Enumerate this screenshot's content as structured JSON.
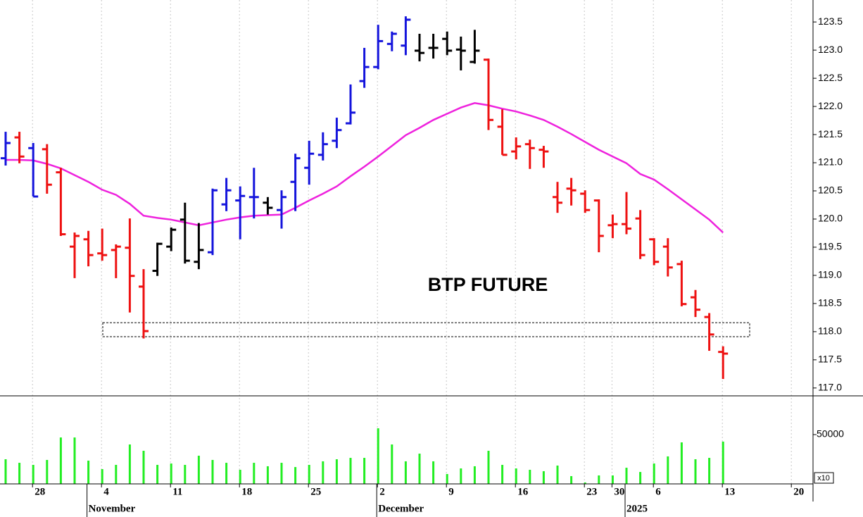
{
  "chart_data": {
    "type": "ohlc",
    "title": "BTP FUTURE",
    "categories": [
      null,
      null,
      "28",
      null,
      null,
      null,
      null,
      "4",
      null,
      null,
      null,
      null,
      "11",
      null,
      null,
      null,
      null,
      "18",
      null,
      null,
      null,
      null,
      "25",
      null,
      null,
      null,
      null,
      "2",
      null,
      null,
      null,
      null,
      "9",
      null,
      null,
      null,
      null,
      "16",
      null,
      null,
      null,
      null,
      "23",
      null,
      "30",
      null,
      null,
      "6",
      null,
      null,
      null,
      null,
      "13",
      null,
      null,
      null,
      null,
      "20"
    ],
    "month_labels": [
      null,
      null,
      null,
      null,
      null,
      null,
      "November",
      null,
      null,
      null,
      null,
      null,
      null,
      null,
      null,
      null,
      null,
      null,
      null,
      null,
      null,
      null,
      null,
      null,
      null,
      null,
      null,
      "December",
      null,
      null,
      null,
      null,
      null,
      null,
      null,
      null,
      null,
      null,
      null,
      null,
      null,
      null,
      null,
      null,
      null,
      "2025",
      null,
      null,
      null,
      null,
      null,
      null,
      null,
      null,
      null,
      null,
      null,
      null
    ],
    "open": [
      121.08,
      121.45,
      121.26,
      121.24,
      120.83,
      119.51,
      119.64,
      119.39,
      119.45,
      119.49,
      118.8,
      119.08,
      119.51,
      119.99,
      119.24,
      119.41,
      120.26,
      120.33,
      120.39,
      120.29,
      120.16,
      120.66,
      120.91,
      121.14,
      121.39,
      121.7,
      122.45,
      122.7,
      123.11,
      123.08,
      122.99,
      123.04,
      123.2,
      123.01,
      122.79,
      122.83,
      121.64,
      121.2,
      121.33,
      121.23,
      120.39,
      120.54,
      120.45,
      120.33,
      119.89,
      119.91,
      120.01,
      119.64,
      119.51,
      119.2,
      118.61,
      118.26,
      117.64,
      null,
      null,
      null,
      null,
      null
    ],
    "high": [
      121.55,
      121.55,
      121.35,
      121.33,
      120.91,
      119.76,
      119.79,
      119.83,
      119.55,
      120.01,
      119.11,
      119.58,
      119.85,
      120.29,
      119.93,
      120.54,
      120.73,
      120.58,
      120.91,
      120.39,
      120.51,
      121.16,
      121.39,
      121.54,
      121.8,
      122.39,
      123.04,
      123.45,
      123.33,
      123.6,
      123.29,
      123.29,
      123.33,
      123.24,
      123.36,
      122.85,
      121.95,
      121.45,
      121.41,
      121.3,
      120.66,
      120.73,
      120.51,
      120.35,
      120.08,
      120.48,
      120.16,
      119.66,
      119.66,
      119.26,
      118.74,
      118.33,
      117.74,
      null,
      null,
      null,
      null,
      null
    ],
    "low": [
      120.95,
      120.99,
      120.4,
      120.45,
      119.7,
      118.95,
      119.16,
      119.26,
      118.95,
      118.34,
      117.88,
      118.99,
      119.43,
      119.21,
      119.11,
      119.36,
      120.14,
      119.64,
      120.01,
      120.08,
      119.83,
      120.14,
      120.61,
      121.04,
      121.26,
      121.68,
      122.33,
      122.66,
      122.98,
      122.91,
      122.8,
      122.85,
      122.91,
      122.64,
      122.76,
      121.58,
      121.14,
      121.06,
      120.89,
      120.91,
      120.11,
      120.24,
      120.11,
      119.41,
      119.66,
      119.73,
      119.29,
      119.18,
      118.98,
      118.45,
      118.26,
      117.66,
      117.16,
      null,
      null,
      null,
      null,
      null
    ],
    "close": [
      121.35,
      121.11,
      120.4,
      120.61,
      119.73,
      119.7,
      119.36,
      119.36,
      119.51,
      118.99,
      118.01,
      119.56,
      119.81,
      119.26,
      119.45,
      120.51,
      120.51,
      120.41,
      120.39,
      120.2,
      120.39,
      121.08,
      121.16,
      121.33,
      121.58,
      121.89,
      122.7,
      123.16,
      123.29,
      123.54,
      122.95,
      123.04,
      122.99,
      122.99,
      122.99,
      121.76,
      121.14,
      121.29,
      121.26,
      121.2,
      120.29,
      120.51,
      120.16,
      119.7,
      119.91,
      119.83,
      119.36,
      119.24,
      119.14,
      118.49,
      118.39,
      117.95,
      117.61,
      null,
      null,
      null,
      null,
      null
    ],
    "colors": [
      "#1414dc",
      "#ee1111",
      "#1414dc",
      "#ee1111",
      "#ee1111",
      "#ee1111",
      "#ee1111",
      "#ee1111",
      "#ee1111",
      "#ee1111",
      "#ee1111",
      "#000000",
      "#000000",
      "#000000",
      "#000000",
      "#1414dc",
      "#1414dc",
      "#1414dc",
      "#1414dc",
      "#000000",
      "#1414dc",
      "#1414dc",
      "#1414dc",
      "#1414dc",
      "#1414dc",
      "#1414dc",
      "#1414dc",
      "#1414dc",
      "#1414dc",
      "#1414dc",
      "#000000",
      "#000000",
      "#000000",
      "#000000",
      "#000000",
      "#ee1111",
      "#ee1111",
      "#ee1111",
      "#ee1111",
      "#ee1111",
      "#ee1111",
      "#ee1111",
      "#ee1111",
      "#ee1111",
      "#ee1111",
      "#ee1111",
      "#ee1111",
      "#ee1111",
      "#ee1111",
      "#ee1111",
      "#ee1111",
      "#ee1111",
      "#ee1111",
      null,
      null,
      null,
      null,
      null
    ],
    "moving_average": {
      "color": "#ee22dd",
      "values": [
        121.05,
        121.05,
        121.04,
        120.98,
        120.9,
        120.78,
        120.66,
        120.52,
        120.43,
        120.27,
        120.06,
        120.02,
        119.99,
        119.94,
        119.89,
        119.94,
        119.99,
        120.03,
        120.06,
        120.07,
        120.08,
        120.2,
        120.33,
        120.45,
        120.58,
        120.76,
        120.93,
        121.11,
        121.3,
        121.49,
        121.62,
        121.76,
        121.87,
        121.98,
        122.06,
        122.02,
        121.96,
        121.91,
        121.84,
        121.76,
        121.64,
        121.51,
        121.37,
        121.23,
        121.11,
        120.99,
        120.8,
        120.7,
        120.53,
        120.35,
        120.17,
        119.99,
        119.76,
        null,
        null,
        null,
        null,
        null
      ]
    },
    "ylim": [
      116.86,
      123.89
    ],
    "yticks": [
      {
        "value": 117,
        "label": "117.0"
      },
      117.5,
      {
        "value": 118,
        "label": "118.0"
      },
      118.5,
      {
        "value": 119,
        "label": "119.0"
      },
      119.5,
      {
        "value": 120,
        "label": "120.0"
      },
      120.5,
      {
        "value": 121,
        "label": "121.0"
      },
      121.5,
      {
        "value": 122,
        "label": "122.0"
      },
      122.5,
      {
        "value": 123,
        "label": "123.0"
      },
      123.5
    ],
    "support_zone": {
      "low": 117.91,
      "high": 118.16
    },
    "volume": {
      "color": "#22ee22",
      "values": [
        25000,
        21400,
        19300,
        24300,
        47100,
        47100,
        23600,
        15000,
        19300,
        40000,
        33600,
        19300,
        20700,
        19300,
        28600,
        24300,
        21400,
        14300,
        21400,
        17900,
        21400,
        17100,
        19300,
        22900,
        25000,
        26400,
        26400,
        56400,
        40000,
        22900,
        30700,
        22900,
        10000,
        15700,
        17900,
        33600,
        19300,
        15700,
        14300,
        12900,
        18600,
        7900,
        1500,
        8600,
        8600,
        16400,
        12100,
        20700,
        27900,
        42100,
        25000,
        26400,
        42900,
        null,
        null,
        null,
        null,
        null
      ],
      "ylim": [
        0,
        88600
      ],
      "yticks": [
        50000
      ],
      "multiplier": "x10"
    }
  }
}
